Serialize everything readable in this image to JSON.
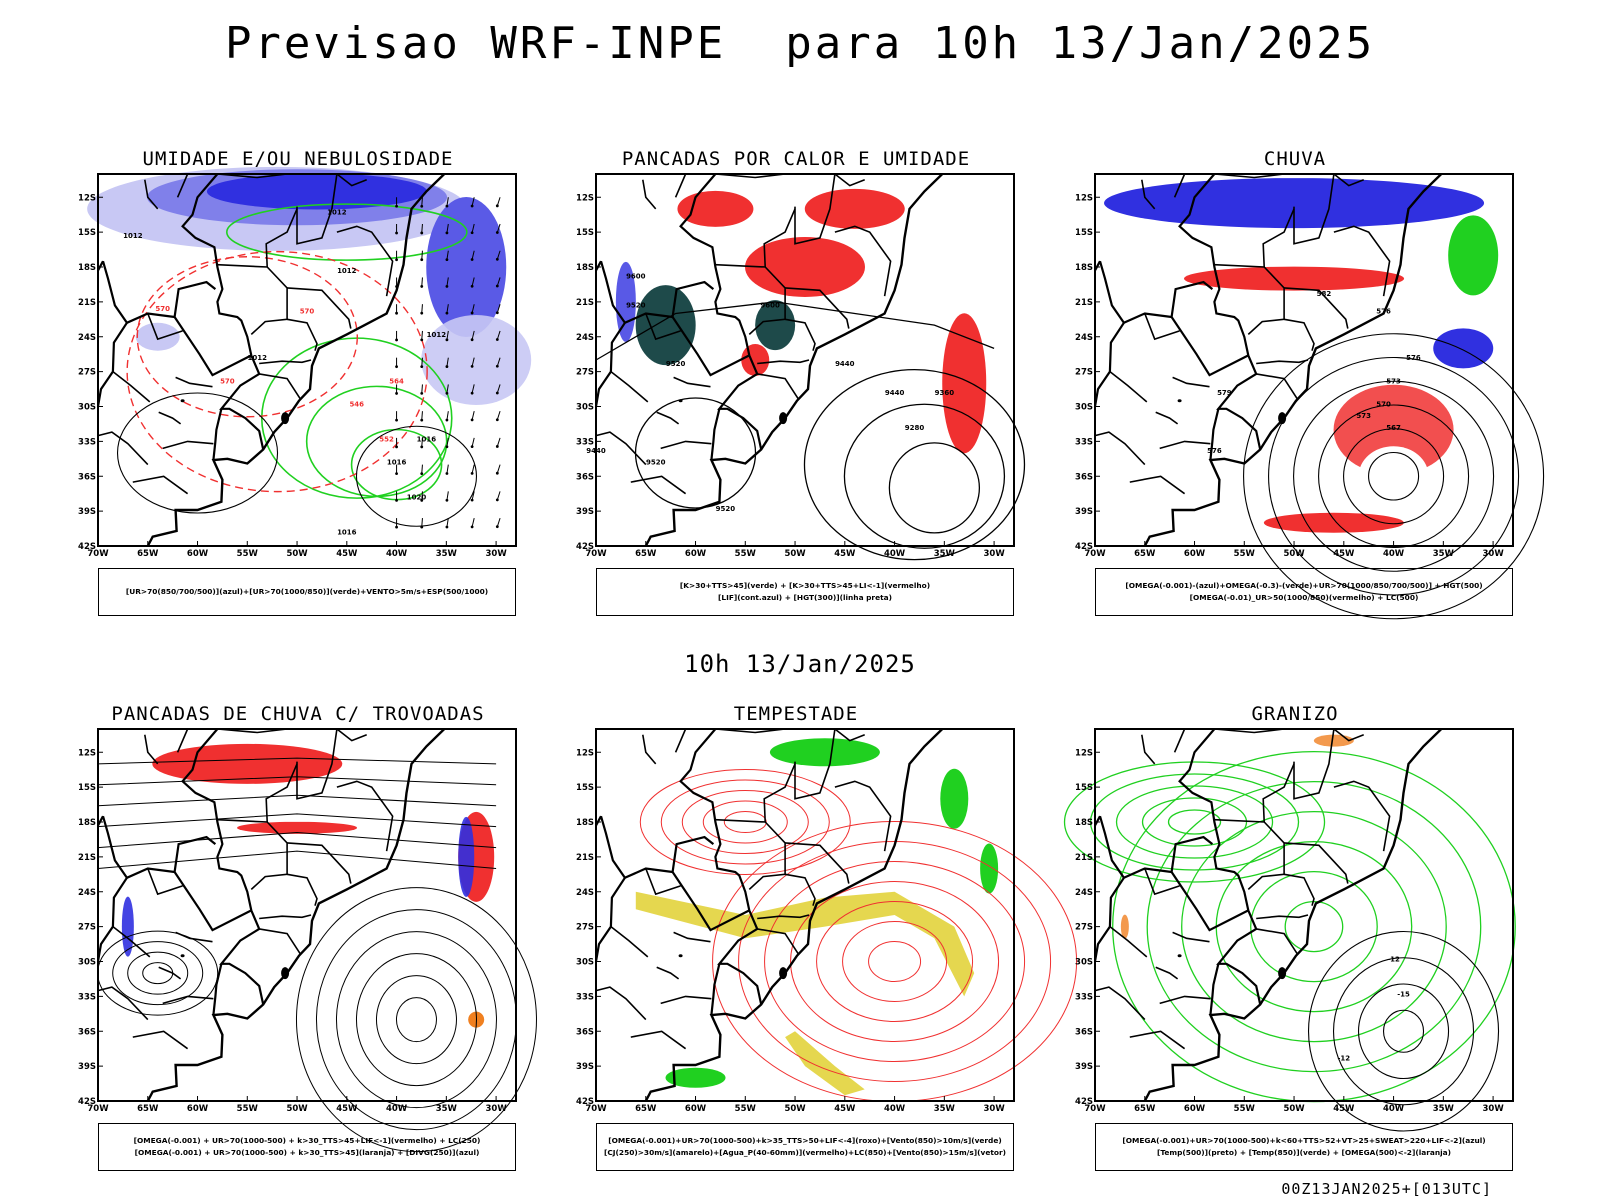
{
  "header": {
    "title": "Previsao WRF-INPE  para 10h 13/Jan/2025"
  },
  "middle": {
    "subtitle": "10h 13/Jan/2025"
  },
  "footer": {
    "stamp": "00Z13JAN2025+[013UTC]"
  },
  "axes": {
    "lat_labels": [
      "12S",
      "15S",
      "18S",
      "21S",
      "24S",
      "27S",
      "30S",
      "33S",
      "36S",
      "39S",
      "42S"
    ],
    "lon_labels": [
      "70W",
      "65W",
      "60W",
      "55W",
      "50W",
      "45W",
      "40W",
      "35W",
      "30W"
    ]
  },
  "colors": {
    "blue": "#3030e0",
    "green": "#20d020",
    "red": "#f03030",
    "teal": "#1e4a4a",
    "yellow": "#e0d030",
    "orange": "#f08020",
    "black": "#000000"
  },
  "panels": [
    {
      "id": "umidade",
      "title": "UMIDADE E/OU NEBULOSIDADE",
      "legend": [
        "[UR>70(850/700/500)](azul)+[UR>70(1000/850)](verde)+VENTO>5m/s+ESP(500/1000)"
      ],
      "contour_labels": [
        "1012",
        "1012",
        "1012",
        "1012",
        "1012",
        "1016",
        "1016",
        "1016",
        "1020",
        "570",
        "570",
        "570",
        "564",
        "552",
        "546"
      ]
    },
    {
      "id": "pancadas_calor",
      "title": "PANCADAS POR CALOR E UMIDADE",
      "legend": [
        "[K>30+TTS>45](verde)  +  [K>30+TTS>45+LI<-1](vermelho)",
        "[LIF](cont.azul)  +  [HGT(300)](linha preta)"
      ],
      "contour_labels": [
        "9600",
        "9520",
        "9520",
        "9600",
        "9440",
        "9440",
        "9360",
        "9280",
        "9520",
        "9520",
        "9440"
      ]
    },
    {
      "id": "chuva",
      "title": "CHUVA",
      "legend": [
        "[OMEGA(-0.001)-(azul)+OMEGA(-0.3)-(verde)+UR>70(1000/850/700/500)]  +  HGT(500)",
        "[OMEGA(-0.01)_UR>50(1000/850)(vermelho)  +  LC(500)"
      ],
      "contour_labels": [
        "582",
        "576",
        "576",
        "573",
        "573",
        "570",
        "567",
        "576",
        "579"
      ]
    },
    {
      "id": "pancadas_trovoadas",
      "title": "PANCADAS DE CHUVA C/ TROVOADAS",
      "legend": [
        "[OMEGA(-0.001)  +  UR>70(1000-500)  +  k>30_TTS>45+LIF<-1](vermelho)  +  LC(250)",
        "[OMEGA(-0.001)  +  UR>70(1000-500)  +  k>30_TTS>45](laranja)  +  [DIVG(250)](azul)"
      ],
      "contour_labels": []
    },
    {
      "id": "tempestade",
      "title": "TEMPESTADE",
      "legend": [
        "[OMEGA(-0.001)+UR>70(1000-500)+k>35_TTS>50+LIF<-4](roxo)+[Vento(850)>10m/s](verde)",
        "[CJ(250)>30m/s](amarelo)+[Agua_P(40-60mm)](vermelho)+LC(850)+[Vento(850)>15m/s](vetor)"
      ],
      "contour_labels": []
    },
    {
      "id": "granizo",
      "title": "GRANIZO",
      "legend": [
        "[OMEGA(-0.001)+UR>70(1000-500)+k<60+TTS>52+VT>25+SWEAT>220+LIF<-2](azul)",
        "[Temp(500)](preto)  +  [Temp(850)](verde)  +  [OMEGA(500)<-2](laranja)"
      ],
      "contour_labels": [
        "-12",
        "-15",
        "-12"
      ]
    }
  ]
}
